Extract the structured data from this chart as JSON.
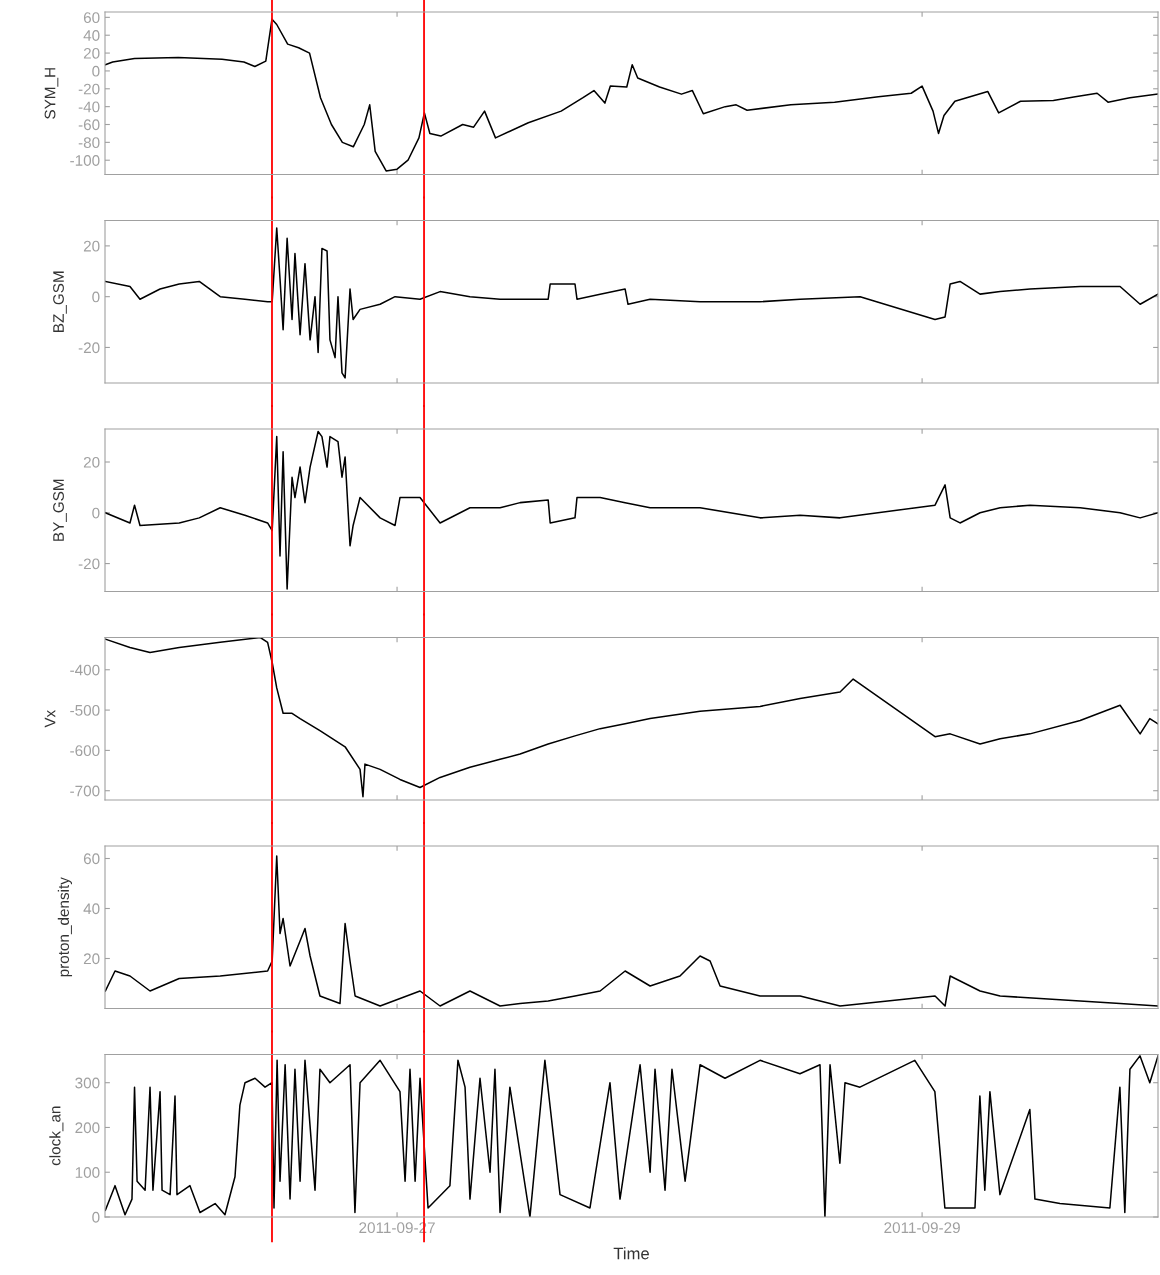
{
  "chart_data": [
    {
      "type": "line",
      "ylabel": "SYM_H",
      "tick_labels": "y",
      "color": "#000000",
      "xlim": [
        "2011-09-25T21:18",
        "2011-09-29T21:34"
      ],
      "xticks": [
        {
          "value": "2011-09-27",
          "label": null
        },
        {
          "value": "2011-09-29",
          "label": null
        }
      ],
      "ylim": [
        -116,
        66
      ],
      "yticks": [
        -100,
        -80,
        -60,
        -40,
        -20,
        0,
        20,
        40,
        60
      ],
      "ref_lines": [
        {
          "axis": "x",
          "value": "2011-09-26T12:34",
          "color": "#ff0000"
        },
        {
          "axis": "x",
          "value": "2011-09-27T02:28",
          "color": "#ff0000"
        }
      ],
      "x": [
        "2011-09-25T21:20",
        "2011-09-25T22:00",
        "2011-09-26T00:00",
        "2011-09-26T04:00",
        "2011-09-26T08:00",
        "2011-09-26T10:00",
        "2011-09-26T11:00",
        "2011-09-26T12:00",
        "2011-09-26T12:34",
        "2011-09-26T13:00",
        "2011-09-26T14:00",
        "2011-09-26T15:00",
        "2011-09-26T16:00",
        "2011-09-26T17:00",
        "2011-09-26T18:00",
        "2011-09-26T19:00",
        "2011-09-26T20:00",
        "2011-09-26T21:00",
        "2011-09-26T21:30",
        "2011-09-26T22:00",
        "2011-09-26T23:00",
        "2011-09-27T00:00",
        "2011-09-27T01:00",
        "2011-09-27T02:00",
        "2011-09-27T02:30",
        "2011-09-27T03:00",
        "2011-09-27T04:00",
        "2011-09-27T06:00",
        "2011-09-27T07:00",
        "2011-09-27T08:00",
        "2011-09-27T09:00",
        "2011-09-27T12:00",
        "2011-09-27T15:00",
        "2011-09-27T17:00",
        "2011-09-27T18:00",
        "2011-09-27T19:00",
        "2011-09-27T19:30",
        "2011-09-27T21:00",
        "2011-09-27T21:30",
        "2011-09-27T22:00",
        "2011-09-28T00:00",
        "2011-09-28T02:00",
        "2011-09-28T03:00",
        "2011-09-28T04:00",
        "2011-09-28T06:00",
        "2011-09-28T07:00",
        "2011-09-28T08:00",
        "2011-09-28T12:00",
        "2011-09-28T16:00",
        "2011-09-28T20:00",
        "2011-09-28T23:00",
        "2011-09-29T00:00",
        "2011-09-29T01:00",
        "2011-09-29T01:30",
        "2011-09-29T02:00",
        "2011-09-29T03:00",
        "2011-09-29T06:00",
        "2011-09-29T07:00",
        "2011-09-29T09:00",
        "2011-09-29T12:00",
        "2011-09-29T14:00",
        "2011-09-29T16:00",
        "2011-09-29T17:00",
        "2011-09-29T19:00",
        "2011-09-29T21:30"
      ],
      "values": [
        7,
        10,
        14,
        15,
        13,
        10,
        5,
        11,
        58,
        52,
        30,
        26,
        20,
        -30,
        -60,
        -80,
        -85,
        -60,
        -38,
        -90,
        -112,
        -110,
        -100,
        -75,
        -47,
        -70,
        -73,
        -60,
        -63,
        -45,
        -75,
        -58,
        -45,
        -30,
        -22,
        -36,
        -17,
        -18,
        7,
        -8,
        -18,
        -26,
        -22,
        -48,
        -40,
        -38,
        -44,
        -38,
        -35,
        -29,
        -25,
        -17,
        -45,
        -70,
        -50,
        -34,
        -23,
        -47,
        -34,
        -33,
        -29,
        -25,
        -35,
        -30,
        -26
      ]
    },
    {
      "type": "line",
      "ylabel": "BZ_GSM",
      "tick_labels": "y",
      "color": "#000000",
      "xlim": [
        "2011-09-25T21:18",
        "2011-09-29T21:34"
      ],
      "xticks": [
        {
          "value": "2011-09-27",
          "label": null
        },
        {
          "value": "2011-09-29",
          "label": null
        }
      ],
      "ylim": [
        -34,
        30
      ],
      "yticks": [
        -20,
        0,
        20
      ],
      "ref_lines": [
        {
          "axis": "x",
          "value": "2011-09-26T12:34",
          "color": "#ff0000"
        },
        {
          "axis": "x",
          "value": "2011-09-27T02:28",
          "color": "#ff0000"
        }
      ],
      "x": [
        "2011-09-25T21:20",
        "2011-09-25T23:35",
        "2011-09-26T00:30",
        "2011-09-26T02:20",
        "2011-09-26T04:05",
        "2011-09-26T05:55",
        "2011-09-26T07:50",
        "2011-09-26T10:05",
        "2011-09-26T12:10",
        "2011-09-26T12:35",
        "2011-09-26T13:00",
        "2011-09-26T13:18",
        "2011-09-26T13:35",
        "2011-09-26T13:57",
        "2011-09-26T14:24",
        "2011-09-26T14:40",
        "2011-09-26T15:08",
        "2011-09-26T15:35",
        "2011-09-26T16:03",
        "2011-09-26T16:30",
        "2011-09-26T16:47",
        "2011-09-26T17:08",
        "2011-09-26T17:36",
        "2011-09-26T17:52",
        "2011-09-26T18:20",
        "2011-09-26T18:36",
        "2011-09-26T18:58",
        "2011-09-26T19:15",
        "2011-09-26T19:42",
        "2011-09-26T19:59",
        "2011-09-26T20:37",
        "2011-09-26T22:27",
        "2011-09-26T23:49",
        "2011-09-27T02:06",
        "2011-09-27T03:56",
        "2011-09-27T06:40",
        "2011-09-27T09:25",
        "2011-09-27T11:15",
        "2011-09-27T13:49",
        "2011-09-27T14:00",
        "2011-09-27T16:16",
        "2011-09-27T16:27",
        "2011-09-27T18:34",
        "2011-09-27T20:51",
        "2011-09-27T21:07",
        "2011-09-27T23:08",
        "2011-09-28T03:42",
        "2011-09-28T09:11",
        "2011-09-28T12:51",
        "2011-09-28T18:20",
        "2011-09-29T01:11",
        "2011-09-29T02:06",
        "2011-09-29T02:34",
        "2011-09-29T03:28",
        "2011-09-29T05:18",
        "2011-09-29T07:08",
        "2011-09-29T09:52",
        "2011-09-29T14:27",
        "2011-09-29T18:06",
        "2011-09-29T19:56",
        "2011-09-29T21:34"
      ],
      "values": [
        6,
        4,
        -1,
        3,
        5,
        6,
        0,
        -1,
        -2,
        -2,
        27,
        7,
        -13,
        23,
        -9,
        17,
        -15,
        13,
        -17,
        0,
        -22,
        19,
        18,
        -17,
        -24,
        0,
        -30,
        -32,
        3,
        -9,
        -5,
        -3,
        0,
        -1,
        2,
        0,
        -1,
        -1,
        -1,
        5,
        5,
        -1,
        1,
        3,
        -3,
        -1,
        -2,
        -2,
        -1,
        0,
        -9,
        -8,
        5,
        6,
        1,
        2,
        3,
        4,
        4,
        -3,
        1
      ]
    },
    {
      "type": "line",
      "ylabel": "BY_GSM",
      "tick_labels": "y",
      "color": "#000000",
      "xlim": [
        "2011-09-25T21:18",
        "2011-09-29T21:34"
      ],
      "xticks": [
        {
          "value": "2011-09-27",
          "label": null
        },
        {
          "value": "2011-09-29",
          "label": null
        }
      ],
      "ylim": [
        -31,
        33
      ],
      "yticks": [
        -20,
        0,
        20
      ],
      "ref_lines": [
        {
          "axis": "x",
          "value": "2011-09-26T12:34",
          "color": "#ff0000"
        },
        {
          "axis": "x",
          "value": "2011-09-27T02:28",
          "color": "#ff0000"
        }
      ],
      "x": [
        "2011-09-25T21:20",
        "2011-09-25T23:35",
        "2011-09-26T00:00",
        "2011-09-26T00:30",
        "2011-09-26T04:05",
        "2011-09-26T05:55",
        "2011-09-26T07:50",
        "2011-09-26T10:05",
        "2011-09-26T12:10",
        "2011-09-26T12:35",
        "2011-09-26T13:00",
        "2011-09-26T13:18",
        "2011-09-26T13:35",
        "2011-09-26T13:57",
        "2011-09-26T14:24",
        "2011-09-26T14:40",
        "2011-09-26T15:08",
        "2011-09-26T15:35",
        "2011-09-26T16:03",
        "2011-09-26T16:47",
        "2011-09-26T17:08",
        "2011-09-26T17:36",
        "2011-09-26T17:52",
        "2011-09-26T18:36",
        "2011-09-26T18:58",
        "2011-09-26T19:15",
        "2011-09-26T19:42",
        "2011-09-26T19:59",
        "2011-09-26T20:37",
        "2011-09-26T22:27",
        "2011-09-26T23:49",
        "2011-09-27T00:16",
        "2011-09-27T02:06",
        "2011-09-27T03:56",
        "2011-09-27T06:40",
        "2011-09-27T09:25",
        "2011-09-27T11:15",
        "2011-09-27T13:49",
        "2011-09-27T14:00",
        "2011-09-27T16:16",
        "2011-09-27T16:27",
        "2011-09-27T18:34",
        "2011-09-27T20:51",
        "2011-09-27T23:08",
        "2011-09-28T03:42",
        "2011-09-28T09:11",
        "2011-09-28T12:51",
        "2011-09-28T16:30",
        "2011-09-29T01:11",
        "2011-09-29T02:06",
        "2011-09-29T02:34",
        "2011-09-29T03:28",
        "2011-09-29T05:18",
        "2011-09-29T07:08",
        "2011-09-29T09:52",
        "2011-09-29T14:27",
        "2011-09-29T18:06",
        "2011-09-29T19:56",
        "2011-09-29T21:34"
      ],
      "values": [
        0,
        -4,
        3,
        -5,
        -4,
        -2,
        2,
        -1,
        -4,
        -7,
        30,
        -17,
        24,
        -30,
        14,
        6,
        18,
        4,
        18,
        32,
        30,
        18,
        30,
        28,
        14,
        22,
        -13,
        -5,
        6,
        -2,
        -5,
        6,
        6,
        -4,
        2,
        2,
        4,
        5,
        -4,
        -2,
        6,
        6,
        4,
        2,
        2,
        -2,
        -1,
        -2,
        3,
        11,
        -2,
        -4,
        0,
        2,
        3,
        2,
        0,
        -2,
        0
      ]
    },
    {
      "type": "line",
      "ylabel": "Vx",
      "tick_labels": "y",
      "color": "#000000",
      "xlim": [
        "2011-09-25T21:18",
        "2011-09-29T21:34"
      ],
      "xticks": [
        {
          "value": "2011-09-27",
          "label": null
        },
        {
          "value": "2011-09-29",
          "label": null
        }
      ],
      "ylim": [
        -723,
        -320
      ],
      "yticks": [
        -700,
        -600,
        -500,
        -400
      ],
      "ref_lines": [
        {
          "axis": "x",
          "value": "2011-09-26T12:34",
          "color": "#ff0000"
        },
        {
          "axis": "x",
          "value": "2011-09-27T02:28",
          "color": "#ff0000"
        }
      ],
      "x": [
        "2011-09-25T21:20",
        "2011-09-25T23:35",
        "2011-09-26T01:25",
        "2011-09-26T04:05",
        "2011-09-26T07:50",
        "2011-09-26T11:30",
        "2011-09-26T12:10",
        "2011-09-26T12:35",
        "2011-09-26T13:00",
        "2011-09-26T13:35",
        "2011-09-26T14:24",
        "2011-09-26T15:08",
        "2011-09-26T16:57",
        "2011-09-26T19:15",
        "2011-09-26T20:37",
        "2011-09-26T20:53",
        "2011-09-26T21:04",
        "2011-09-26T22:27",
        "2011-09-27T00:16",
        "2011-09-27T02:06",
        "2011-09-27T03:56",
        "2011-09-27T06:40",
        "2011-09-27T09:25",
        "2011-09-27T11:15",
        "2011-09-27T13:49",
        "2011-09-27T16:16",
        "2011-09-27T18:34",
        "2011-09-27T20:51",
        "2011-09-27T23:08",
        "2011-09-28T03:42",
        "2011-09-28T09:11",
        "2011-09-28T12:51",
        "2011-09-28T16:30",
        "2011-09-28T17:42",
        "2011-09-29T01:11",
        "2011-09-29T02:34",
        "2011-09-29T05:18",
        "2011-09-29T07:08",
        "2011-09-29T09:52",
        "2011-09-29T14:27",
        "2011-09-29T18:06",
        "2011-09-29T19:56",
        "2011-09-29T20:49",
        "2011-09-29T21:34"
      ],
      "values": [
        -324,
        -345,
        -357,
        -345,
        -332,
        -320,
        -332,
        -382,
        -445,
        -508,
        -508,
        -521,
        -551,
        -591,
        -647,
        -715,
        -634,
        -647,
        -672,
        -692,
        -667,
        -642,
        -622,
        -609,
        -584,
        -564,
        -546,
        -534,
        -521,
        -503,
        -491,
        -471,
        -455,
        -423,
        -566,
        -559,
        -584,
        -571,
        -559,
        -526,
        -488,
        -559,
        -521,
        -534
      ]
    },
    {
      "type": "line",
      "ylabel": "proton_density",
      "tick_labels": "y",
      "color": "#000000",
      "xlim": [
        "2011-09-25T21:18",
        "2011-09-29T21:34"
      ],
      "xticks": [
        {
          "value": "2011-09-27",
          "label": null
        },
        {
          "value": "2011-09-29",
          "label": null
        }
      ],
      "ylim": [
        0,
        65
      ],
      "yticks": [
        20,
        40,
        60
      ],
      "ref_lines": [
        {
          "axis": "x",
          "value": "2011-09-26T12:34",
          "color": "#ff0000"
        },
        {
          "axis": "x",
          "value": "2011-09-27T02:28",
          "color": "#ff0000"
        }
      ],
      "x": [
        "2011-09-25T21:20",
        "2011-09-25T22:13",
        "2011-09-25T23:35",
        "2011-09-26T01:25",
        "2011-09-26T04:05",
        "2011-09-26T07:50",
        "2011-09-26T12:10",
        "2011-09-26T12:35",
        "2011-09-26T13:00",
        "2011-09-26T13:18",
        "2011-09-26T13:35",
        "2011-09-26T14:13",
        "2011-09-26T15:08",
        "2011-09-26T15:35",
        "2011-09-26T16:03",
        "2011-09-26T16:57",
        "2011-09-26T18:47",
        "2011-09-26T19:15",
        "2011-09-26T19:42",
        "2011-09-26T20:10",
        "2011-09-26T22:27",
        "2011-09-27T02:06",
        "2011-09-27T03:56",
        "2011-09-27T06:40",
        "2011-09-27T09:25",
        "2011-09-27T11:15",
        "2011-09-27T13:49",
        "2011-09-27T16:16",
        "2011-09-27T18:34",
        "2011-09-27T20:51",
        "2011-09-27T23:08",
        "2011-09-28T01:52",
        "2011-09-28T03:42",
        "2011-09-28T04:37",
        "2011-09-28T05:32",
        "2011-09-28T09:11",
        "2011-09-28T12:51",
        "2011-09-28T16:30",
        "2011-09-29T01:11",
        "2011-09-29T02:06",
        "2011-09-29T02:34",
        "2011-09-29T05:18",
        "2011-09-29T07:08",
        "2011-09-29T14:27",
        "2011-09-29T18:06",
        "2011-09-29T21:34"
      ],
      "values": [
        7,
        15,
        13,
        7,
        12,
        13,
        15,
        19,
        61,
        30,
        36,
        17,
        27,
        32,
        21,
        5,
        2,
        34,
        19,
        5,
        1,
        7,
        1,
        7,
        1,
        2,
        3,
        5,
        7,
        15,
        9,
        13,
        21,
        19,
        9,
        5,
        5,
        1,
        5,
        1,
        13,
        7,
        5,
        3,
        2,
        1
      ]
    },
    {
      "type": "line",
      "ylabel": "clock_an",
      "xlabel": "Time",
      "color": "#000000",
      "xlim": [
        "2011-09-25T21:18",
        "2011-09-29T21:34"
      ],
      "xticks": [
        {
          "value": "2011-09-27",
          "label": "2011-09-27"
        },
        {
          "value": "2011-09-29",
          "label": "2011-09-29"
        }
      ],
      "ylim": [
        0,
        363
      ],
      "yticks": [
        0,
        100,
        200,
        300
      ],
      "ref_lines": [
        {
          "axis": "x",
          "value": "2011-09-26T12:34",
          "color": "#ff0000"
        },
        {
          "axis": "x",
          "value": "2011-09-27T02:28",
          "color": "#ff0000"
        }
      ],
      "x": [
        "2011-09-25T21:20",
        "2011-09-25T22:13",
        "2011-09-25T23:08",
        "2011-09-25T23:46",
        "2011-09-26T00:00",
        "2011-09-26T00:14",
        "2011-09-26T00:58",
        "2011-09-26T01:25",
        "2011-09-26T01:41",
        "2011-09-26T02:20",
        "2011-09-26T02:31",
        "2011-09-26T03:15",
        "2011-09-26T03:42",
        "2011-09-26T03:53",
        "2011-09-26T05:04",
        "2011-09-26T05:59",
        "2011-09-26T07:22",
        "2011-09-26T08:16",
        "2011-09-26T09:11",
        "2011-09-26T09:38",
        "2011-09-26T10:06",
        "2011-09-26T11:01",
        "2011-09-26T11:56",
        "2011-09-26T12:34",
        "2011-09-26T12:45",
        "2011-09-26T13:02",
        "2011-09-26T13:18",
        "2011-09-26T13:46",
        "2011-09-26T14:13",
        "2011-09-26T14:40",
        "2011-09-26T15:08",
        "2011-09-26T15:35",
        "2011-09-26T16:30",
        "2011-09-26T16:57",
        "2011-09-26T17:52",
        "2011-09-26T19:42",
        "2011-09-26T20:09",
        "2011-09-26T20:37",
        "2011-09-26T22:27",
        "2011-09-27T00:16",
        "2011-09-27T00:44",
        "2011-09-27T01:11",
        "2011-09-27T01:39",
        "2011-09-27T02:06",
        "2011-09-27T02:50",
        "2011-09-27T04:50",
        "2011-09-27T05:34",
        "2011-09-27T06:13",
        "2011-09-27T06:40",
        "2011-09-27T07:35",
        "2011-09-27T08:30",
        "2011-09-27T08:57",
        "2011-09-27T09:25",
        "2011-09-27T10:19",
        "2011-09-27T12:09",
        "2011-09-27T13:31",
        "2011-09-27T14:54",
        "2011-09-27T17:38",
        "2011-09-27T19:28",
        "2011-09-27T20:23",
        "2011-09-27T22:13",
        "2011-09-27T23:08",
        "2011-09-27T23:35",
        "2011-09-28T00:30",
        "2011-09-28T01:08",
        "2011-09-28T02:20",
        "2011-09-28T03:42",
        "2011-09-28T05:59",
        "2011-09-28T09:11",
        "2011-09-28T12:50",
        "2011-09-28T14:40",
        "2011-09-28T15:07",
        "2011-09-28T15:35",
        "2011-09-28T16:29",
        "2011-09-28T16:57",
        "2011-09-28T18:19",
        "2011-09-28T23:20",
        "2011-09-29T01:10",
        "2011-09-29T02:05",
        "2011-09-29T04:50",
        "2011-09-29T05:17",
        "2011-09-29T05:44",
        "2011-09-29T06:12",
        "2011-09-29T07:07",
        "2011-09-29T09:51",
        "2011-09-29T10:19",
        "2011-09-29T12:36",
        "2011-09-29T17:10",
        "2011-09-29T18:05",
        "2011-09-29T18:32",
        "2011-09-29T19:00",
        "2011-09-29T19:55",
        "2011-09-29T20:49",
        "2011-09-29T21:34"
      ],
      "values": [
        15,
        70,
        5,
        40,
        290,
        80,
        60,
        290,
        60,
        280,
        60,
        50,
        270,
        50,
        70,
        10,
        30,
        5,
        90,
        250,
        300,
        310,
        290,
        300,
        20,
        350,
        80,
        340,
        40,
        330,
        80,
        350,
        60,
        330,
        300,
        340,
        10,
        300,
        350,
        280,
        80,
        330,
        80,
        310,
        20,
        70,
        350,
        290,
        40,
        310,
        100,
        330,
        10,
        290,
        0,
        350,
        50,
        20,
        300,
        40,
        340,
        100,
        330,
        60,
        330,
        80,
        340,
        310,
        350,
        320,
        340,
        0,
        340,
        120,
        300,
        290,
        350,
        280,
        20,
        20,
        270,
        60,
        280,
        50,
        240,
        40,
        30,
        20,
        290,
        10,
        330,
        360,
        300,
        360
      ]
    }
  ]
}
